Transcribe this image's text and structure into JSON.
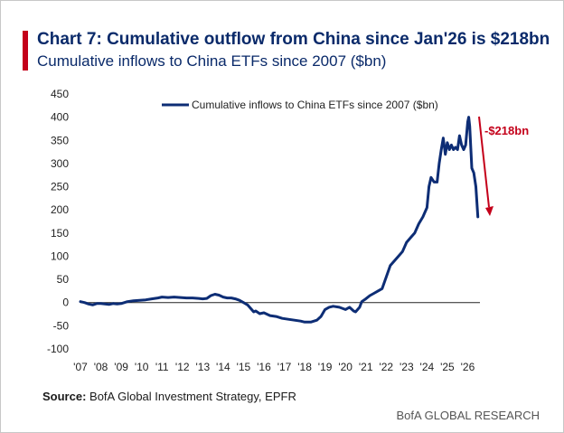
{
  "header": {
    "title": "Chart 7: Cumulative outflow from China since Jan'26 is $218bn",
    "subtitle": "Cumulative inflows to China ETFs since 2007 ($bn)"
  },
  "footer": {
    "source_label": "Source:",
    "source_text": " BofA Global Investment Strategy, EPFR",
    "brand": "BofA GLOBAL RESEARCH"
  },
  "colors": {
    "series": "#0d2d75",
    "annotation": "#c4001a",
    "accent": "#c4001a"
  },
  "chart_data": {
    "type": "line",
    "title": "Cumulative inflows to China ETFs since 2007 ($bn)",
    "xlabel": "",
    "ylabel": "",
    "ylim": [
      -100,
      450
    ],
    "yticks": [
      -100,
      -50,
      0,
      50,
      100,
      150,
      200,
      250,
      300,
      350,
      400,
      450
    ],
    "xlim": [
      2007,
      2026.6
    ],
    "xtick_labels": [
      "'07",
      "'08",
      "'09",
      "'10",
      "'11",
      "'12",
      "'13",
      "'14",
      "'15",
      "'16",
      "'17",
      "'18",
      "'19",
      "'20",
      "'21",
      "'22",
      "'23",
      "'24",
      "'25",
      "'26"
    ],
    "legend_position": "top",
    "grid": false,
    "series": [
      {
        "name": "Cumulative inflows to China ETFs since 2007 ($bn)",
        "x": [
          2007.0,
          2007.2,
          2007.4,
          2007.6,
          2007.8,
          2008.0,
          2008.2,
          2008.4,
          2008.6,
          2008.8,
          2009.0,
          2009.3,
          2009.6,
          2009.9,
          2010.2,
          2010.5,
          2010.8,
          2011.0,
          2011.3,
          2011.6,
          2011.9,
          2012.2,
          2012.5,
          2012.8,
          2013.0,
          2013.2,
          2013.4,
          2013.6,
          2013.8,
          2014.0,
          2014.2,
          2014.4,
          2014.6,
          2014.8,
          2015.0,
          2015.2,
          2015.4,
          2015.5,
          2015.6,
          2015.8,
          2016.0,
          2016.3,
          2016.6,
          2016.9,
          2017.2,
          2017.5,
          2017.8,
          2018.0,
          2018.3,
          2018.6,
          2018.8,
          2019.0,
          2019.2,
          2019.4,
          2019.7,
          2020.0,
          2020.2,
          2020.4,
          2020.5,
          2020.7,
          2020.8,
          2021.0,
          2021.2,
          2021.4,
          2021.6,
          2021.8,
          2022.0,
          2022.2,
          2022.4,
          2022.6,
          2022.8,
          2023.0,
          2023.2,
          2023.4,
          2023.6,
          2023.8,
          2024.0,
          2024.1,
          2024.2,
          2024.35,
          2024.5,
          2024.6,
          2024.7,
          2024.8,
          2024.9,
          2025.0,
          2025.1,
          2025.2,
          2025.3,
          2025.4,
          2025.5,
          2025.6,
          2025.7,
          2025.8,
          2025.9,
          2026.0,
          2026.05,
          2026.1,
          2026.2,
          2026.3,
          2026.4,
          2026.5
        ],
        "values": [
          2,
          0,
          -3,
          -5,
          -2,
          -2,
          -3,
          -4,
          -2,
          -3,
          -2,
          2,
          4,
          5,
          6,
          8,
          10,
          12,
          11,
          12,
          11,
          10,
          10,
          9,
          8,
          9,
          15,
          18,
          16,
          12,
          10,
          10,
          8,
          5,
          0,
          -5,
          -15,
          -20,
          -18,
          -24,
          -22,
          -28,
          -30,
          -34,
          -36,
          -38,
          -40,
          -42,
          -42,
          -38,
          -30,
          -15,
          -10,
          -8,
          -10,
          -15,
          -10,
          -18,
          -20,
          -10,
          2,
          8,
          15,
          20,
          25,
          30,
          55,
          80,
          90,
          100,
          110,
          130,
          140,
          150,
          170,
          185,
          205,
          250,
          270,
          260,
          260,
          300,
          330,
          355,
          320,
          345,
          330,
          340,
          330,
          335,
          330,
          360,
          340,
          330,
          340,
          390,
          400,
          380,
          290,
          280,
          250,
          185
        ]
      }
    ],
    "annotations": [
      {
        "text": "-$218bn",
        "type": "arrow"
      }
    ]
  }
}
